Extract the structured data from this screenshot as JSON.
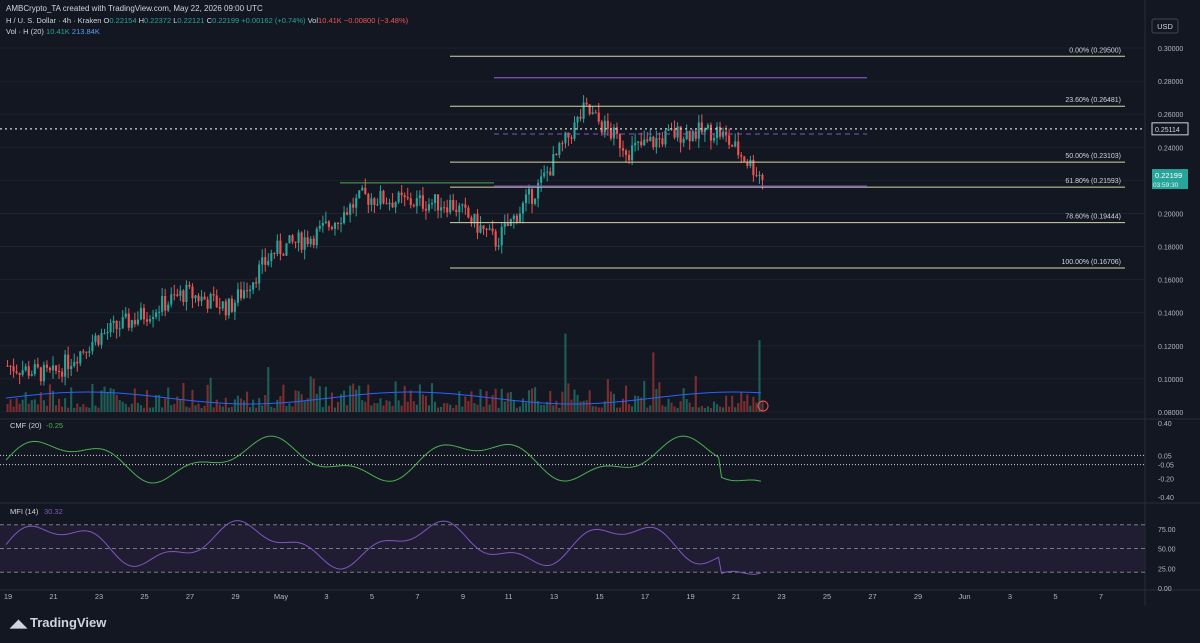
{
  "header": {
    "attribution": "AMBCrypto_TA created with TradingView.com, May 22, 2026 09:00 UTC",
    "symbol": "H / U. S. Dollar · 4h · Kraken",
    "ohlc": [
      {
        "k": "O",
        "v": "0.22154",
        "c": "g"
      },
      {
        "k": "H",
        "v": "0.22372",
        "c": "g"
      },
      {
        "k": "L",
        "v": "0.22121",
        "c": "g"
      },
      {
        "k": "C",
        "v": "0.22199",
        "c": "g"
      },
      {
        "k": "",
        "v": "+0.00162 (+0.74%)",
        "c": "g"
      },
      {
        "k": "Vol",
        "v": "10.41K",
        "c": "r"
      },
      {
        "k": "",
        "v": "−0.00800 (−3.48%)",
        "c": "r"
      }
    ],
    "vol_label": "Vol · H (20)",
    "vol_value": "10.41K",
    "vol_ma": "213.84K"
  },
  "currency": "USD",
  "price_axis": [
    "0.30000",
    "0.28000",
    "0.26000",
    "0.24000",
    "0.22000",
    "0.20000",
    "0.18000",
    "0.16000",
    "0.14000",
    "0.12000",
    "0.10000",
    "0.08000"
  ],
  "price_tags": {
    "line": "0.25114",
    "last": "0.22199",
    "countdown": "03:59:30"
  },
  "fib_levels": [
    {
      "label": "0.00% (0.29500)",
      "price": 0.295
    },
    {
      "label": "23.60% (0.26481)",
      "price": 0.26481
    },
    {
      "label": "50.00% (0.23103)",
      "price": 0.23103
    },
    {
      "label": "61.80% (0.21593)",
      "price": 0.21593
    },
    {
      "label": "78.60% (0.19444)",
      "price": 0.19444
    },
    {
      "label": "100.00% (0.16706)",
      "price": 0.16706
    }
  ],
  "cmf": {
    "label": "CMF (20)",
    "value": "-0.25",
    "axis": [
      "0.40",
      "0.05",
      "-0.05",
      "-0.20",
      "-0.40"
    ]
  },
  "mfi": {
    "label": "MFI (14)",
    "value": "30.32",
    "axis": [
      "75.00",
      "50.00",
      "25.00",
      "0.00"
    ]
  },
  "x_axis": [
    "19",
    "21",
    "23",
    "25",
    "27",
    "29",
    "May",
    "3",
    "5",
    "7",
    "9",
    "11",
    "13",
    "15",
    "17",
    "19",
    "21",
    "23",
    "25",
    "27",
    "29",
    "Jun",
    "3",
    "5",
    "7"
  ],
  "brand": "TradingView",
  "colors": {
    "bg": "#131722",
    "up": "#26a69a",
    "down": "#ef5350",
    "fib": "#d7d7a0",
    "purple": "#7e57c2",
    "cmf": "#4caf50",
    "mfi": "#7e57c2"
  },
  "chart_data": {
    "type": "candlestick",
    "title": "H / U. S. Dollar · 4h · Kraken",
    "x": [
      "Apr 19",
      "Apr 21",
      "Apr 23",
      "Apr 25",
      "Apr 27",
      "Apr 29",
      "May 1",
      "May 3",
      "May 5",
      "May 7",
      "May 9",
      "May 11",
      "May 13",
      "May 15",
      "May 17",
      "May 19",
      "May 21",
      "May 22"
    ],
    "close": [
      0.108,
      0.102,
      0.125,
      0.138,
      0.152,
      0.143,
      0.177,
      0.188,
      0.21,
      0.207,
      0.206,
      0.183,
      0.218,
      0.263,
      0.238,
      0.248,
      0.25,
      0.222
    ],
    "ylim": [
      0.08,
      0.3
    ]
  }
}
